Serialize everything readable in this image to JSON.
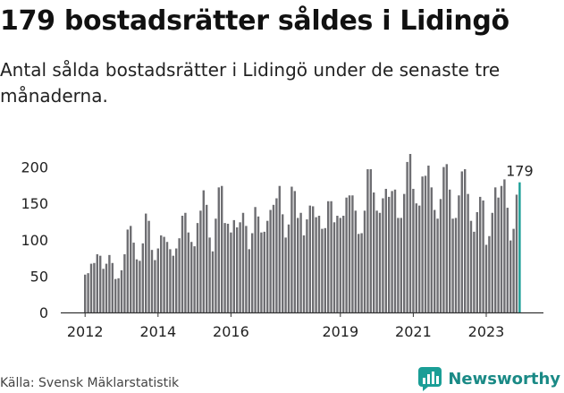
{
  "header": {
    "title": "179 bostadsrätter såldes i Lidingö",
    "subtitle": "Antal sålda bostadsrätter i Lidingö under de senaste tre månaderna."
  },
  "footer": {
    "source": "Källa: Svensk Mäklarstatistik",
    "brand": "Newsworthy",
    "brand_icon": "newsworthy-logo-icon"
  },
  "colors": {
    "bar": "#6e6e72",
    "highlight": "#1a9e96",
    "axis": "#333333",
    "brand": "#1a8a86"
  },
  "chart_data": {
    "type": "bar",
    "title": "179 bostadsrätter såldes i Lidingö",
    "xlabel": "",
    "ylabel": "",
    "ylim": [
      0,
      220
    ],
    "y_ticks": [
      0,
      50,
      100,
      150,
      200
    ],
    "x_ticks": [
      "2012",
      "2014",
      "2016",
      "2019",
      "2021",
      "2023"
    ],
    "x_tick_positions": [
      0,
      24,
      48,
      84,
      108,
      132
    ],
    "start_period": "2012-01",
    "highlight_label": "179",
    "values": [
      52,
      54,
      67,
      68,
      80,
      78,
      60,
      67,
      79,
      68,
      46,
      47,
      58,
      80,
      114,
      119,
      96,
      73,
      71,
      95,
      136,
      126,
      86,
      72,
      88,
      106,
      104,
      97,
      87,
      78,
      88,
      102,
      133,
      137,
      110,
      97,
      91,
      123,
      140,
      168,
      148,
      103,
      84,
      129,
      172,
      174,
      123,
      122,
      110,
      127,
      117,
      124,
      137,
      119,
      87,
      109,
      145,
      132,
      110,
      111,
      126,
      141,
      148,
      157,
      174,
      135,
      103,
      121,
      173,
      167,
      130,
      137,
      106,
      128,
      147,
      146,
      131,
      133,
      115,
      116,
      153,
      153,
      124,
      133,
      130,
      133,
      158,
      161,
      161,
      140,
      108,
      109,
      140,
      197,
      197,
      165,
      140,
      137,
      157,
      170,
      159,
      167,
      169,
      130,
      130,
      163,
      207,
      218,
      170,
      150,
      147,
      187,
      188,
      202,
      172,
      141,
      129,
      156,
      200,
      204,
      169,
      129,
      130,
      161,
      194,
      197,
      163,
      126,
      111,
      138,
      159,
      154,
      93,
      105,
      137,
      172,
      158,
      174,
      183,
      144,
      99,
      115,
      162,
      179
    ]
  }
}
